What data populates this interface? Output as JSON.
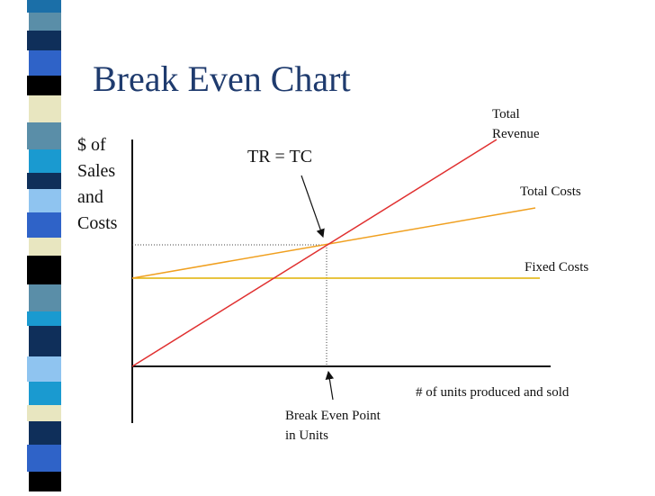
{
  "header": {
    "title": "Break Even Chart"
  },
  "axes": {
    "y_label": [
      "$ of",
      "Sales",
      "and",
      "Costs"
    ],
    "x_label": "# of units produced and sold"
  },
  "lines": {
    "total_revenue": [
      "Total",
      "Revenue"
    ],
    "total_costs": "Total Costs",
    "fixed_costs": "Fixed Costs"
  },
  "annotations": {
    "intersection": "TR = TC",
    "break_even": [
      "Break Even Point",
      "in Units"
    ]
  }
}
